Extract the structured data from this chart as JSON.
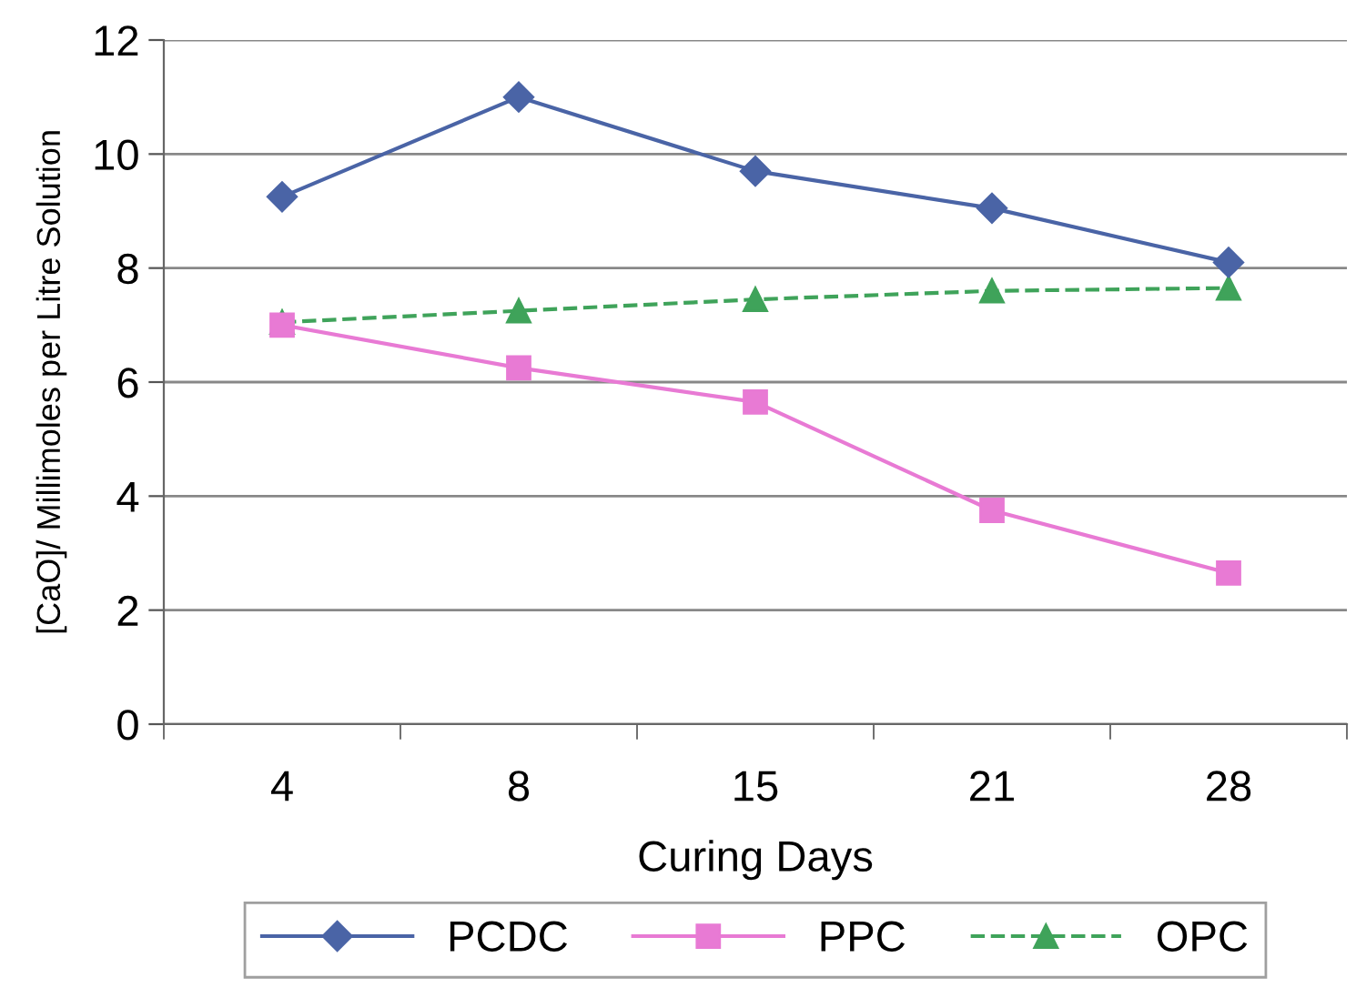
{
  "chart_data": {
    "type": "line",
    "xlabel": "Curing Days",
    "ylabel": "[CaO]/ Millimoles per Litre Solution",
    "categories": [
      "4",
      "8",
      "15",
      "21",
      "28"
    ],
    "series": [
      {
        "name": "PCDC",
        "color": "#4a64a6",
        "values": [
          9.25,
          11.0,
          9.7,
          9.05,
          8.1
        ],
        "marker": "diamond",
        "line_style": "solid"
      },
      {
        "name": "PPC",
        "color": "#e87ad4",
        "values": [
          7.0,
          6.25,
          5.65,
          3.75,
          2.65
        ],
        "marker": "square",
        "line_style": "solid"
      },
      {
        "name": "OPC",
        "color": "#3fa35a",
        "values": [
          7.05,
          7.25,
          7.45,
          7.6,
          7.65
        ],
        "marker": "triangle",
        "line_style": "dashed"
      }
    ],
    "ylim": [
      0,
      12
    ],
    "yticks": [
      0,
      2,
      4,
      6,
      8,
      10,
      12
    ],
    "grid": "y",
    "legend": "bottom"
  }
}
